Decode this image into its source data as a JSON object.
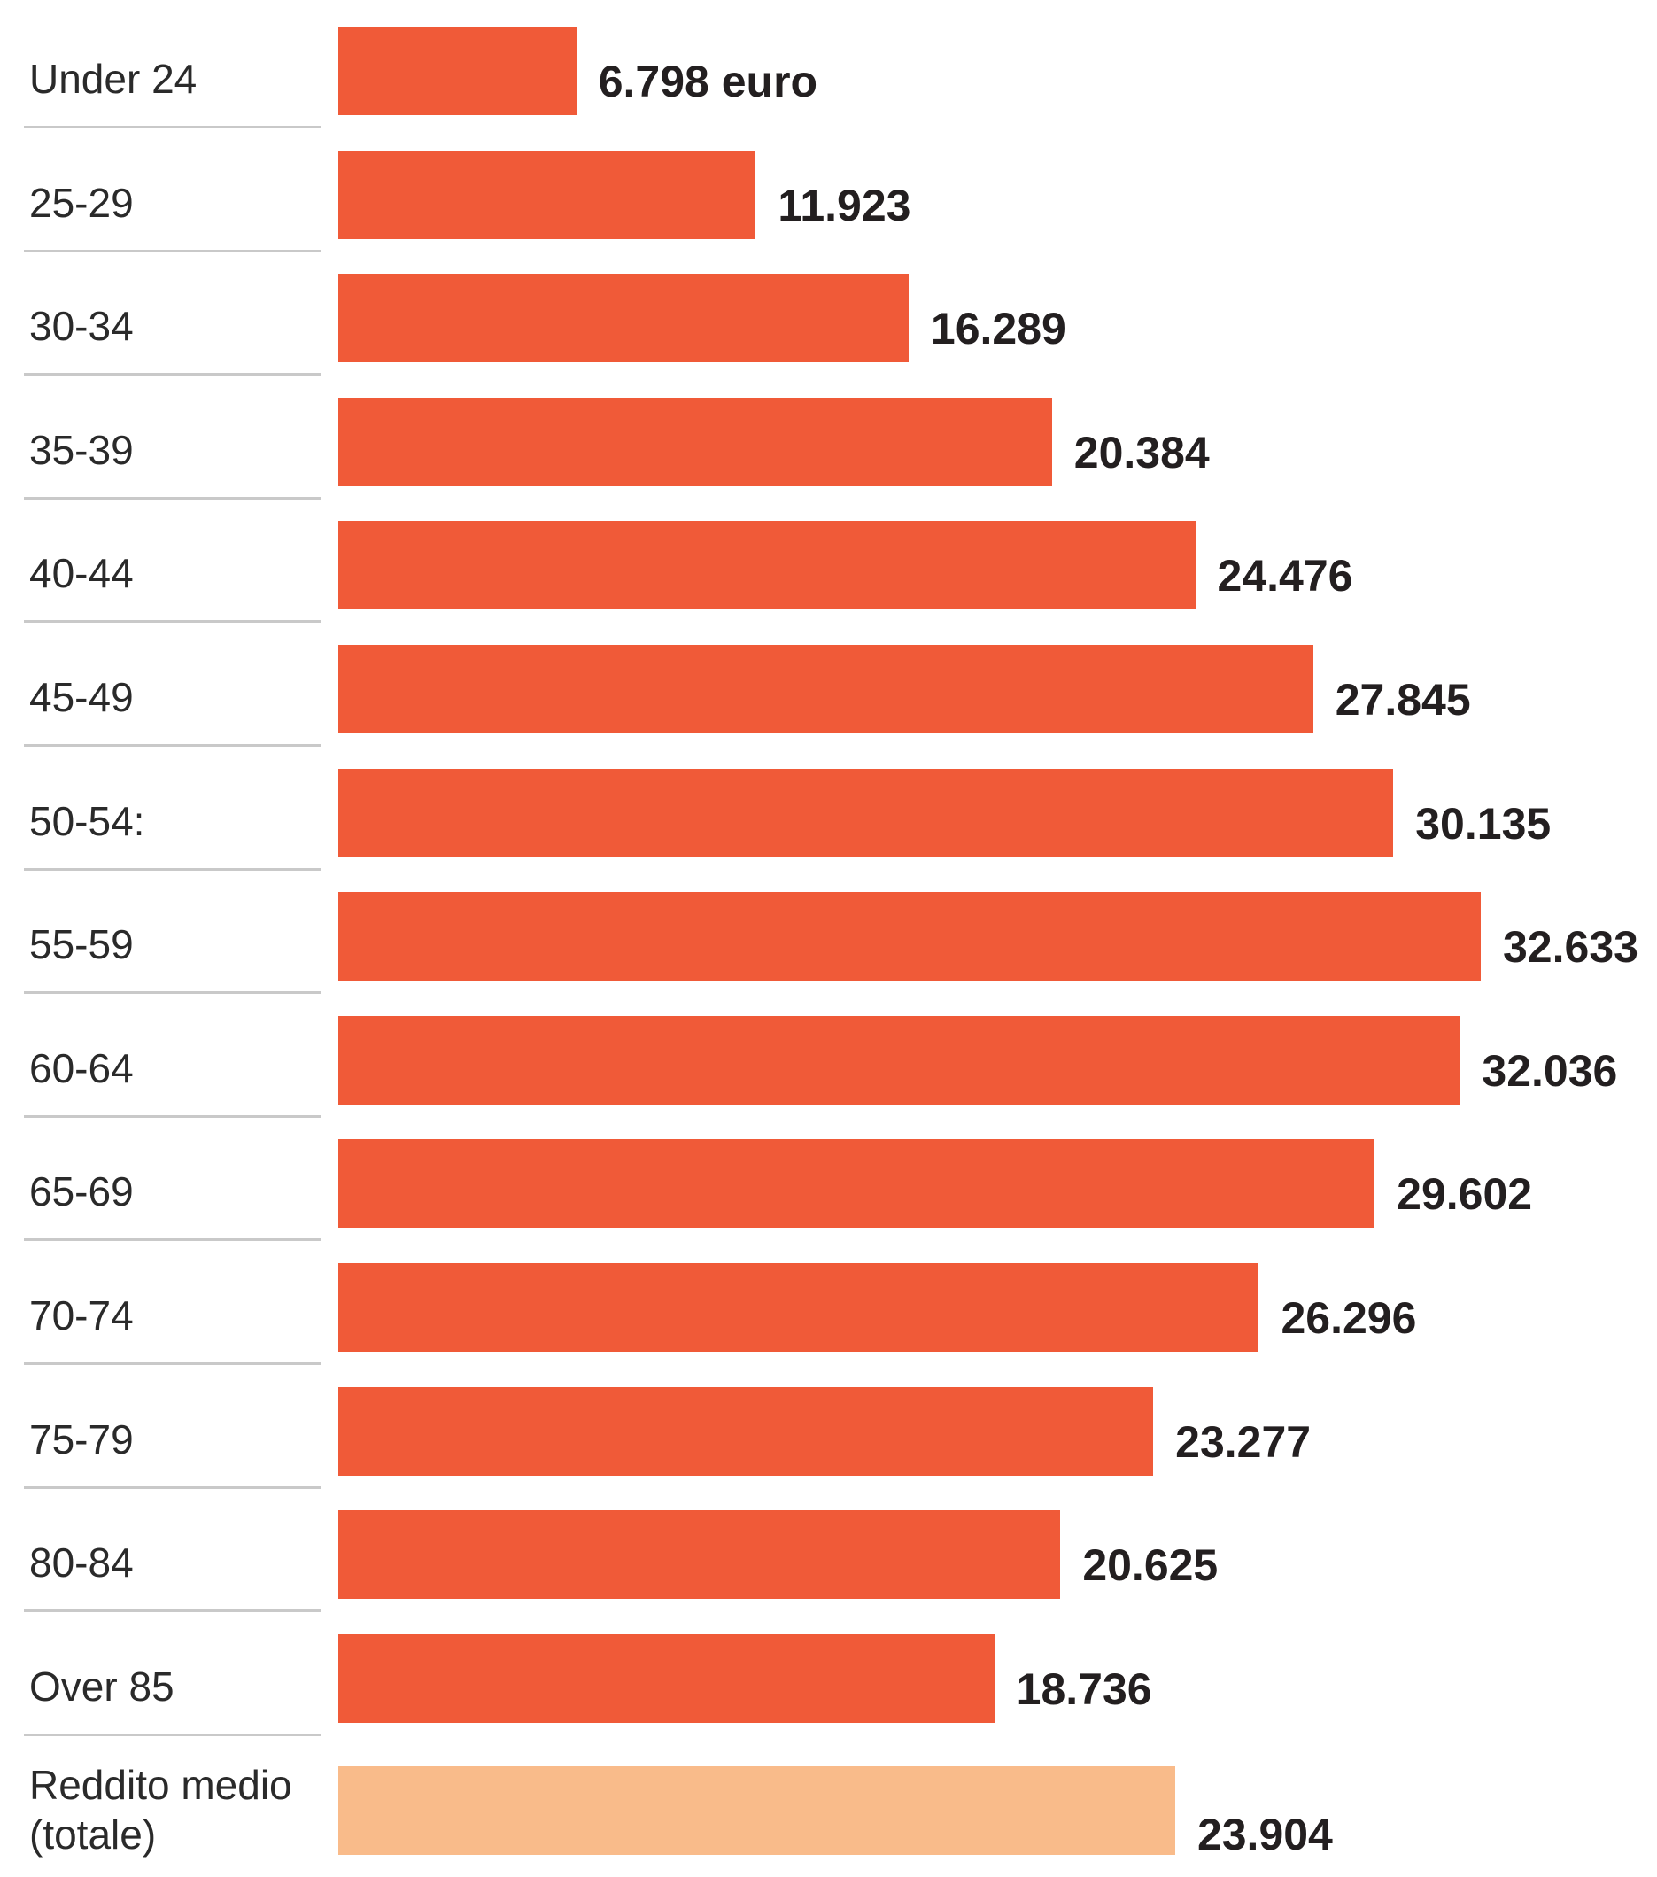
{
  "chart_data": {
    "type": "bar",
    "orientation": "horizontal",
    "categories": [
      "Under 24",
      "25-29",
      "30-34",
      "35-39",
      "40-44",
      "45-49",
      "50-54:",
      "55-59",
      "60-64",
      "65-69",
      "70-74",
      "75-79",
      "80-84",
      "Over 85",
      "Reddito medio (totale)"
    ],
    "values": [
      6798,
      11923,
      16289,
      20384,
      24476,
      27845,
      30135,
      32633,
      32036,
      29602,
      26296,
      23277,
      20625,
      18736,
      23904
    ],
    "value_labels": [
      "6.798 euro",
      "11.923",
      "16.289",
      "20.384",
      "24.476",
      "27.845",
      "30.135",
      "32.633",
      "32.036",
      "29.602",
      "26.296",
      "23.277",
      "20.625",
      "18.736",
      "23.904"
    ],
    "highlight_index": 14,
    "xlim": [
      0,
      32633
    ],
    "title": "",
    "xlabel": "",
    "ylabel": "",
    "grid": false,
    "legend": "none",
    "colors": {
      "bar": "#f05a38",
      "highlight_bar": "#f9bb8a",
      "value_text": "#231f20",
      "label_text": "#2a2a2a",
      "separator": "#c9c9c9"
    }
  }
}
